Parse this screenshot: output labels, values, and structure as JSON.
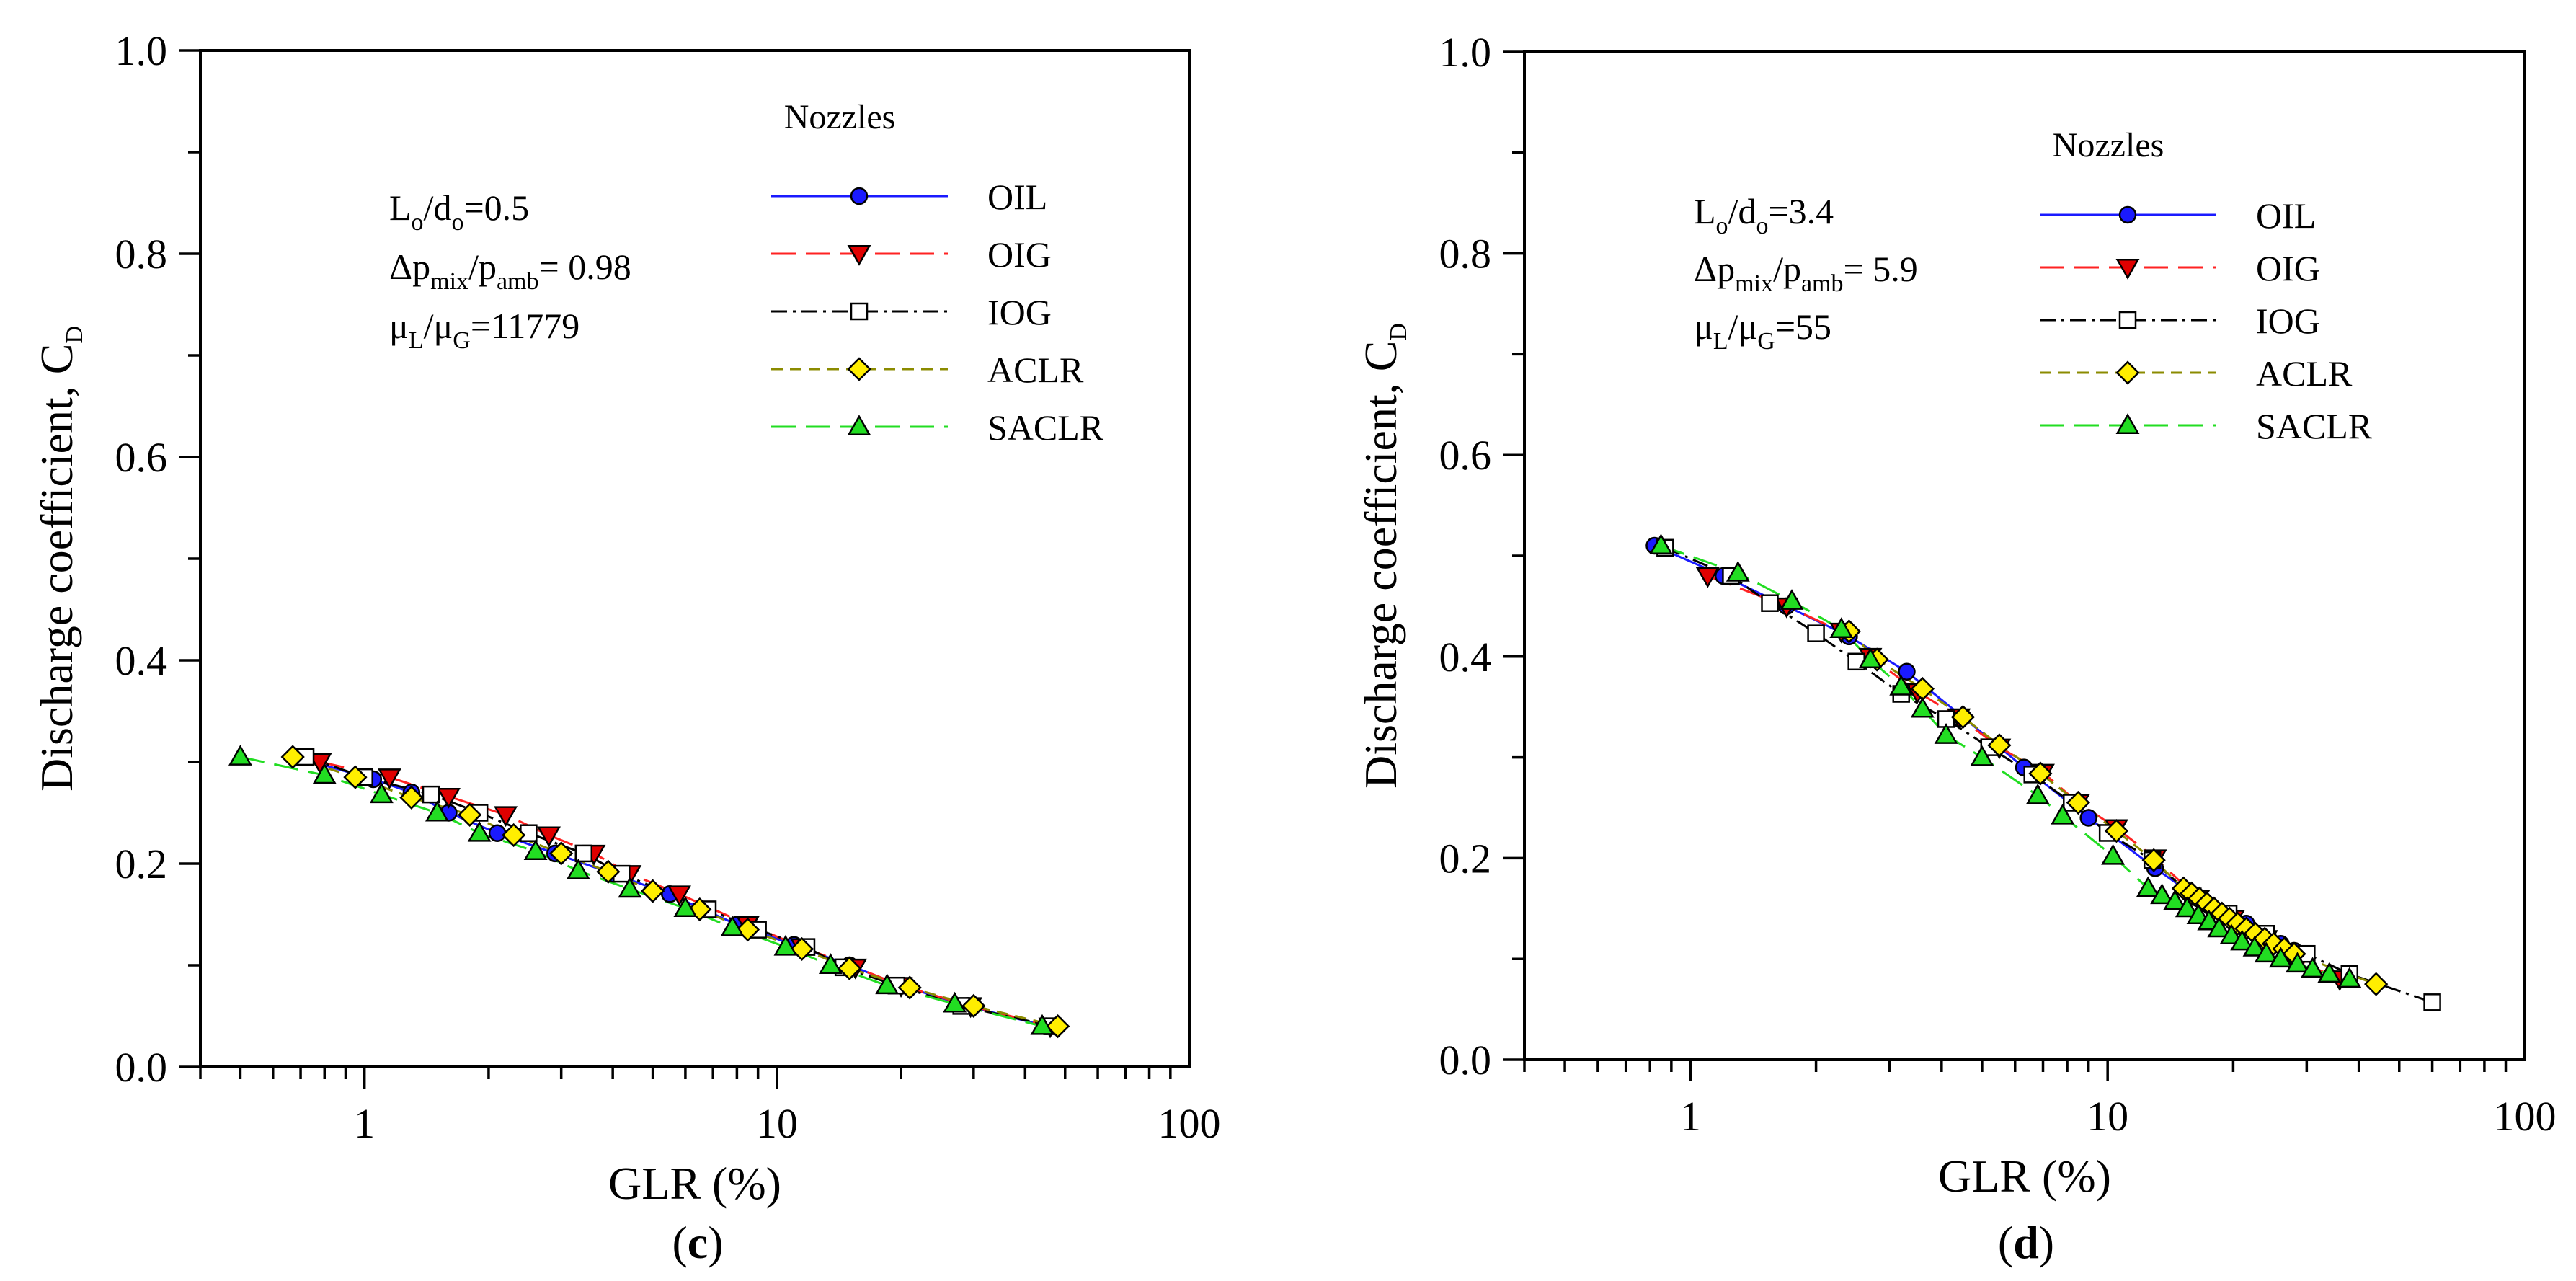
{
  "figure": {
    "panels": [
      "(c)",
      "(d)"
    ]
  },
  "styles": {
    "OIL": {
      "color": "#1a1aff",
      "marker": "circle",
      "fill": "#1a1aff",
      "dash": ""
    },
    "OIG": {
      "color": "#ff2222",
      "marker": "tri-down",
      "fill": "#e00000",
      "dash": "34,14"
    },
    "IOG": {
      "color": "#000000",
      "marker": "square",
      "fill": "#ffffff",
      "dash": "22,8,4,8"
    },
    "ACLR": {
      "color": "#8b8b00",
      "marker": "diamond",
      "fill": "#ffee00",
      "dash": "16,10"
    },
    "SACLR": {
      "color": "#22dd22",
      "marker": "tri-up",
      "fill": "#22dd22",
      "dash": "34,14"
    }
  },
  "chart_data": [
    {
      "type": "line",
      "panel_label": "(c)",
      "xlabel": "GLR (%)",
      "ylabel": "Discharge coefficient, C",
      "ylabel_sub": "D",
      "xscale": "log",
      "xlim": [
        0.4,
        100
      ],
      "ylim": [
        0.0,
        1.0
      ],
      "xticks": [
        1,
        10,
        100
      ],
      "yticks": [
        "0.0",
        "0.2",
        "0.4",
        "0.6",
        "0.8",
        "1.0"
      ],
      "legend_title": "Nozzles",
      "legend_position": "top-right",
      "annotations": [
        [
          "L",
          "o",
          "/d",
          "o",
          "=0.5"
        ],
        [
          "Δp",
          "mix",
          "/p",
          "amb",
          "= 0.98"
        ],
        [
          "μ",
          "L",
          "/μ",
          "G",
          "=11779"
        ]
      ],
      "series": [
        {
          "name": "OIL",
          "x": [
            0.68,
            1.05,
            1.3,
            1.6,
            2.1,
            2.9,
            4.0,
            5.5,
            8.0,
            11.0,
            15.0,
            20.0,
            29.0,
            45.0
          ],
          "y": [
            0.305,
            0.283,
            0.27,
            0.25,
            0.23,
            0.21,
            0.19,
            0.17,
            0.14,
            0.12,
            0.1,
            0.08,
            0.06,
            0.04
          ]
        },
        {
          "name": "OIG",
          "x": [
            0.78,
            1.15,
            1.6,
            2.2,
            2.8,
            3.6,
            4.4,
            5.8,
            8.5,
            11.5,
            15.5,
            20.0,
            29.5,
            46.0
          ],
          "y": [
            0.3,
            0.285,
            0.266,
            0.248,
            0.228,
            0.21,
            0.19,
            0.17,
            0.14,
            0.118,
            0.098,
            0.08,
            0.06,
            0.04
          ]
        },
        {
          "name": "IOG",
          "x": [
            0.72,
            1.0,
            1.45,
            1.9,
            2.5,
            3.4,
            4.2,
            6.8,
            9.0,
            11.8,
            14.5,
            19.5,
            28.0,
            46.5
          ],
          "y": [
            0.305,
            0.285,
            0.268,
            0.25,
            0.23,
            0.21,
            0.19,
            0.155,
            0.135,
            0.118,
            0.098,
            0.08,
            0.06,
            0.04
          ]
        },
        {
          "name": "ACLR",
          "x": [
            0.67,
            0.95,
            1.3,
            1.8,
            2.3,
            3.0,
            3.9,
            5.0,
            6.5,
            8.5,
            11.5,
            15.0,
            21.0,
            30.0,
            48.0
          ],
          "y": [
            0.305,
            0.285,
            0.265,
            0.248,
            0.228,
            0.21,
            0.192,
            0.173,
            0.155,
            0.135,
            0.116,
            0.097,
            0.078,
            0.06,
            0.04
          ]
        },
        {
          "name": "SACLR",
          "x": [
            0.5,
            0.8,
            1.1,
            1.5,
            1.9,
            2.6,
            3.3,
            4.4,
            6.0,
            7.8,
            10.5,
            13.5,
            18.5,
            27.0,
            44.0
          ],
          "y": [
            0.305,
            0.287,
            0.268,
            0.25,
            0.23,
            0.212,
            0.193,
            0.175,
            0.156,
            0.137,
            0.118,
            0.1,
            0.08,
            0.062,
            0.04
          ]
        }
      ]
    },
    {
      "type": "line",
      "panel_label": "(d)",
      "xlabel": "GLR (%)",
      "ylabel": "Discharge coefficient, C",
      "ylabel_sub": "D",
      "xscale": "log",
      "xlim": [
        0.4,
        100
      ],
      "ylim": [
        0.0,
        1.0
      ],
      "xticks": [
        1,
        10,
        100
      ],
      "yticks": [
        "0.0",
        "0.2",
        "0.4",
        "0.6",
        "0.8",
        "1.0"
      ],
      "legend_title": "Nozzles",
      "legend_position": "top-right",
      "annotations": [
        [
          "L",
          "o",
          "/d",
          "o",
          "=3.4"
        ],
        [
          "Δp",
          "mix",
          "/p",
          "amb",
          "= 5.9"
        ],
        [
          "μ",
          "L",
          "/μ",
          "G",
          "=55"
        ]
      ],
      "series": [
        {
          "name": "OIL",
          "x": [
            0.82,
            1.2,
            1.7,
            2.4,
            3.3,
            4.5,
            6.3,
            9.0,
            13.0,
            16.5,
            19.0,
            21.5,
            24.0,
            26.0,
            28.0
          ],
          "y": [
            0.51,
            0.48,
            0.45,
            0.42,
            0.385,
            0.34,
            0.29,
            0.24,
            0.19,
            0.16,
            0.145,
            0.135,
            0.125,
            0.115,
            0.108
          ]
        },
        {
          "name": "OIG",
          "x": [
            1.1,
            1.7,
            2.3,
            2.7,
            3.5,
            4.4,
            5.5,
            7.0,
            8.5,
            10.5,
            13.0,
            16.5,
            20.0,
            24.0,
            28.0,
            36.0
          ],
          "y": [
            0.48,
            0.45,
            0.425,
            0.4,
            0.365,
            0.34,
            0.31,
            0.285,
            0.255,
            0.23,
            0.2,
            0.16,
            0.14,
            0.12,
            0.1,
            0.08
          ]
        },
        {
          "name": "IOG",
          "x": [
            0.87,
            1.25,
            1.55,
            2.0,
            2.5,
            3.2,
            4.1,
            5.2,
            6.6,
            8.2,
            10.0,
            12.8,
            16.0,
            19.5,
            24.0,
            30.0,
            38.0,
            60.0
          ],
          "y": [
            0.508,
            0.48,
            0.453,
            0.423,
            0.395,
            0.363,
            0.338,
            0.31,
            0.283,
            0.255,
            0.225,
            0.198,
            0.162,
            0.145,
            0.125,
            0.105,
            0.085,
            0.057
          ]
        },
        {
          "name": "ACLR",
          "x": [
            2.4,
            2.8,
            3.6,
            4.5,
            5.5,
            6.9,
            8.5,
            10.5,
            12.9,
            15.2,
            15.9,
            16.6,
            17.3,
            18.0,
            18.8,
            19.6,
            20.5,
            21.5,
            22.6,
            23.8,
            25.0,
            26.5,
            28.0,
            44.0
          ],
          "y": [
            0.425,
            0.397,
            0.368,
            0.34,
            0.312,
            0.284,
            0.255,
            0.227,
            0.198,
            0.17,
            0.165,
            0.16,
            0.155,
            0.15,
            0.145,
            0.14,
            0.135,
            0.13,
            0.125,
            0.12,
            0.115,
            0.11,
            0.105,
            0.075
          ]
        },
        {
          "name": "SACLR",
          "x": [
            0.85,
            1.3,
            1.75,
            2.3,
            2.7,
            3.2,
            3.6,
            4.1,
            5.0,
            6.8,
            7.8,
            10.3,
            12.5,
            13.5,
            14.5,
            15.5,
            16.5,
            17.5,
            18.5,
            19.8,
            21.0,
            22.5,
            24.0,
            26.0,
            28.5,
            31.0,
            34.0,
            38.0
          ],
          "y": [
            0.51,
            0.483,
            0.455,
            0.427,
            0.397,
            0.37,
            0.348,
            0.322,
            0.3,
            0.262,
            0.242,
            0.202,
            0.17,
            0.163,
            0.157,
            0.15,
            0.143,
            0.137,
            0.13,
            0.123,
            0.117,
            0.111,
            0.105,
            0.1,
            0.095,
            0.09,
            0.085,
            0.08
          ]
        }
      ]
    }
  ]
}
